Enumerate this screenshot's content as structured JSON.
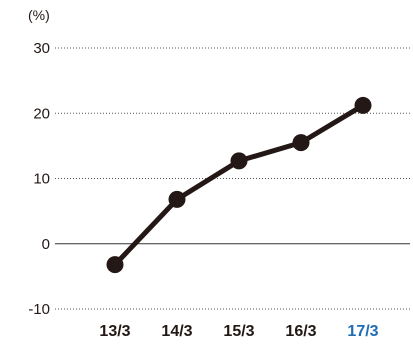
{
  "chart_data": {
    "type": "line",
    "unit_label": "(%)",
    "categories": [
      "13/3",
      "14/3",
      "15/3",
      "16/3",
      "17/3"
    ],
    "highlight_category": "17/3",
    "series": [
      {
        "values": [
          -3.2,
          6.8,
          12.7,
          15.5,
          21.2
        ]
      }
    ],
    "yticks": [
      30,
      20,
      10,
      0,
      -10
    ],
    "ylim": [
      -10,
      30
    ],
    "grid": "dotted horizontal",
    "colors": {
      "line": "#231815",
      "text": "#231815",
      "highlight": "#1f6db5",
      "grid": "#555555",
      "zero_line": "#333333"
    }
  }
}
